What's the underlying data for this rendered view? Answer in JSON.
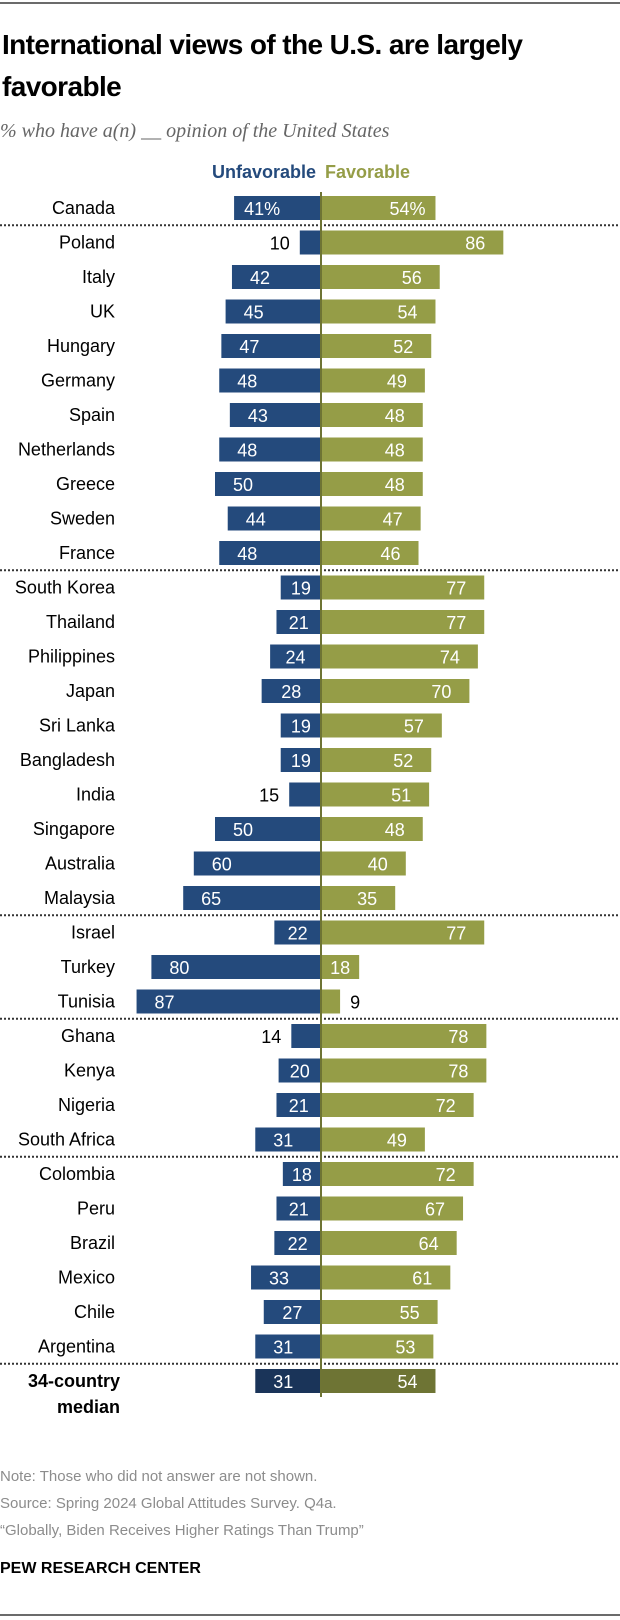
{
  "title": "International views of the U.S. are largely favorable",
  "subtitle": "% who have a(n) __ opinion of the United States",
  "chart_data": {
    "type": "bar",
    "orientation": "horizontal-diverging",
    "legend": [
      "Unfavorable",
      "Favorable"
    ],
    "legend_placement": "top",
    "colors": {
      "unfavorable": "#244a7c",
      "favorable": "#959d47",
      "median_unfavorable": "#1a3459",
      "median_favorable": "#6e7434"
    },
    "categories": [
      "Canada",
      "Poland",
      "Italy",
      "UK",
      "Hungary",
      "Germany",
      "Spain",
      "Netherlands",
      "Greece",
      "Sweden",
      "France",
      "South Korea",
      "Thailand",
      "Philippines",
      "Japan",
      "Sri Lanka",
      "Bangladesh",
      "India",
      "Singapore",
      "Australia",
      "Malaysia",
      "Israel",
      "Turkey",
      "Tunisia",
      "Ghana",
      "Kenya",
      "Nigeria",
      "South Africa",
      "Colombia",
      "Peru",
      "Brazil",
      "Mexico",
      "Chile",
      "Argentina"
    ],
    "series": [
      {
        "name": "Unfavorable",
        "values": [
          41,
          10,
          42,
          45,
          47,
          48,
          43,
          48,
          50,
          44,
          48,
          19,
          21,
          24,
          28,
          19,
          19,
          15,
          50,
          60,
          65,
          22,
          80,
          87,
          14,
          20,
          21,
          31,
          18,
          21,
          22,
          33,
          27,
          31
        ]
      },
      {
        "name": "Favorable",
        "values": [
          54,
          86,
          56,
          54,
          52,
          49,
          48,
          48,
          48,
          47,
          46,
          77,
          77,
          74,
          70,
          57,
          52,
          51,
          48,
          40,
          35,
          77,
          18,
          9,
          78,
          78,
          72,
          49,
          72,
          67,
          64,
          61,
          55,
          53
        ]
      }
    ],
    "first_row_suffix": "%",
    "group_breaks_after": [
      "Canada",
      "France",
      "Malaysia",
      "Tunisia",
      "South Africa",
      "Argentina"
    ],
    "median": {
      "label_line1": "34-country",
      "label_line2": "median",
      "unfavorable": 31,
      "favorable": 54
    }
  },
  "notes": [
    "Note: Those who did not answer are not shown.",
    "Source: Spring 2024 Global Attitudes Survey. Q4a.",
    "“Globally, Biden Receives Higher Ratings Than Trump”"
  ],
  "brand": "PEW RESEARCH CENTER"
}
